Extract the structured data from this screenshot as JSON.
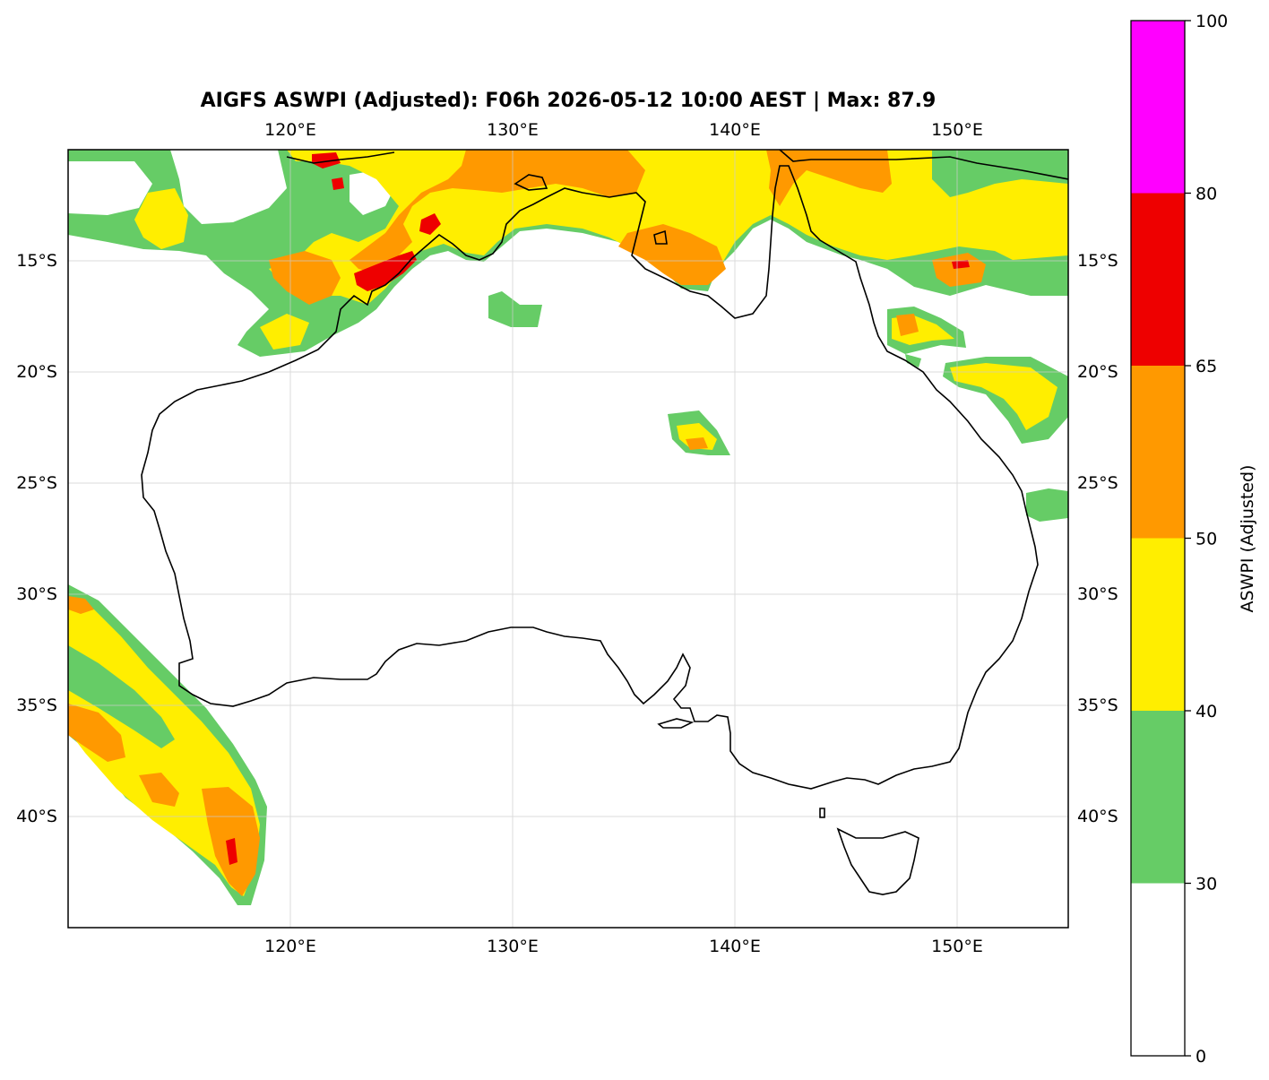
{
  "title": "AIGFS ASWPI (Adjusted): F06h 2026-05-12 10:00 AEST | Max: 87.9",
  "map": {
    "lon_ticks": [
      {
        "lon": 120,
        "label": "120°E"
      },
      {
        "lon": 130,
        "label": "130°E"
      },
      {
        "lon": 140,
        "label": "140°E"
      },
      {
        "lon": 150,
        "label": "150°E"
      }
    ],
    "lat_ticks": [
      {
        "lat": -15,
        "label": "15°S"
      },
      {
        "lat": -20,
        "label": "20°S"
      },
      {
        "lat": -25,
        "label": "25°S"
      },
      {
        "lat": -30,
        "label": "30°S"
      },
      {
        "lat": -35,
        "label": "35°S"
      },
      {
        "lat": -40,
        "label": "40°S"
      }
    ],
    "extent": {
      "lon_min": 110,
      "lon_max": 155,
      "lat_min": -45,
      "lat_max": -10
    },
    "gridlines": true
  },
  "colorbar": {
    "label": "ASWPI (Adjusted)",
    "levels": [
      0,
      30,
      40,
      50,
      65,
      80,
      100
    ],
    "tick_labels": [
      "0",
      "30",
      "40",
      "50",
      "65",
      "80",
      "100"
    ],
    "colors": [
      "#ffffff",
      "#66cc66",
      "#ffee00",
      "#ff9900",
      "#ee0000",
      "#ff00ff"
    ]
  }
}
